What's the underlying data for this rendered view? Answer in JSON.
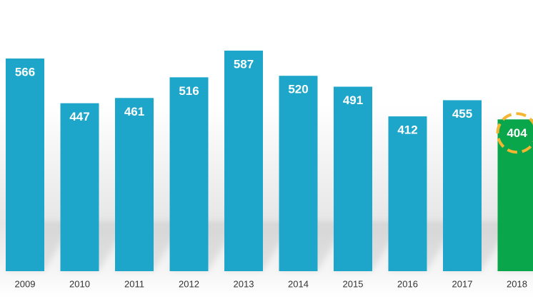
{
  "chart_data": {
    "type": "bar",
    "categories": [
      "2009",
      "2010",
      "2011",
      "2012",
      "2013",
      "2014",
      "2015",
      "2016",
      "2017",
      "2018"
    ],
    "values": [
      566,
      447,
      461,
      516,
      587,
      520,
      491,
      412,
      455,
      404
    ],
    "colors": [
      "#1ea6ca",
      "#1ea6ca",
      "#1ea6ca",
      "#1ea6ca",
      "#1ea6ca",
      "#1ea6ca",
      "#1ea6ca",
      "#1ea6ca",
      "#1ea6ca",
      "#0aa64b"
    ],
    "ring": {
      "category": "2018",
      "color": "#f5b530"
    }
  }
}
